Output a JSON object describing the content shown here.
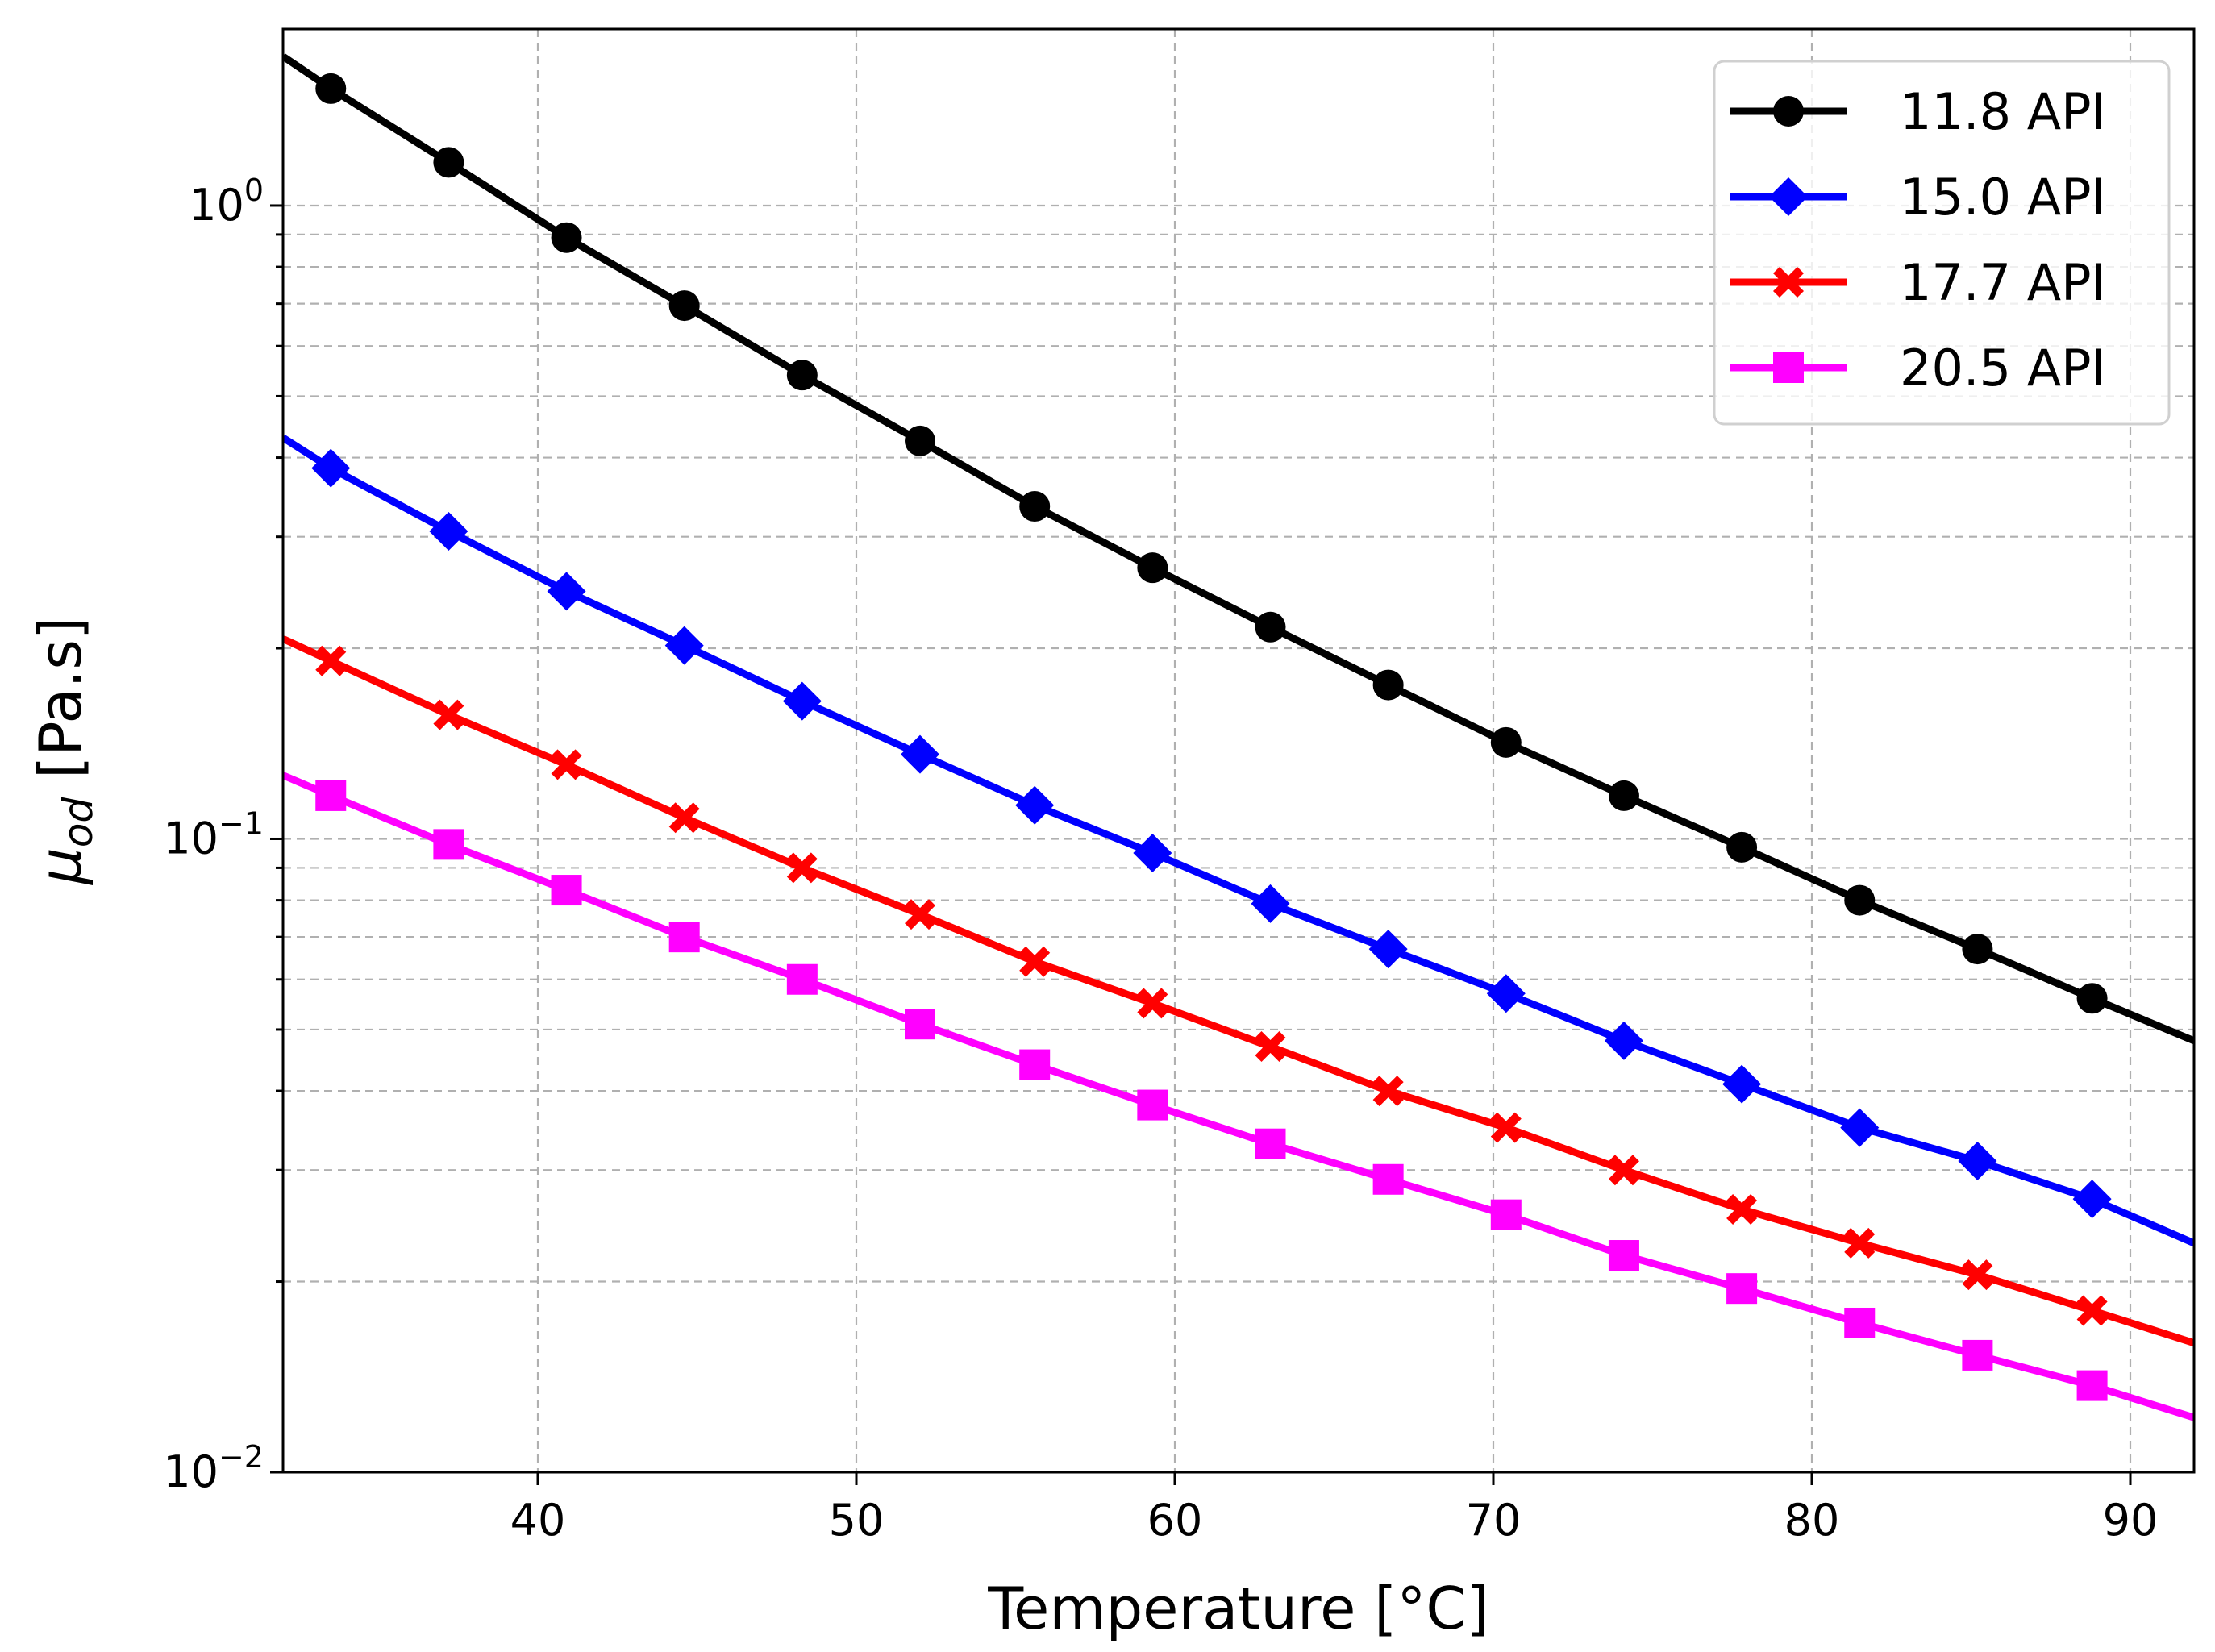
{
  "chart_data": {
    "type": "line",
    "xlabel": "Temperature [°C]",
    "ylabel_symbol": "μ",
    "ylabel_subscript": "od",
    "ylabel_unit": " [Pa.s]",
    "xlim": [
      32,
      92
    ],
    "ylim": [
      0.01,
      1.9
    ],
    "yscale": "log",
    "grid": true,
    "legend_position": "top-right",
    "x_ticks": [
      "40",
      "50",
      "60",
      "70",
      "80",
      "90"
    ],
    "y_ticks": [
      {
        "base": "10",
        "exp": "0"
      },
      {
        "base": "10",
        "exp": "−1"
      },
      {
        "base": "10",
        "exp": "−2"
      }
    ],
    "x": [
      33.5,
      37.2,
      40.9,
      44.6,
      48.3,
      52.0,
      55.6,
      59.3,
      63.0,
      66.7,
      70.4,
      74.1,
      77.8,
      81.5,
      85.2,
      88.8
    ],
    "series": [
      {
        "name": "11.8 API",
        "color": "#000000",
        "marker": "circle",
        "start": [
          32,
          1.72
        ],
        "end": [
          92,
          0.048
        ],
        "values": [
          1.53,
          1.17,
          0.89,
          0.695,
          0.54,
          0.425,
          0.335,
          0.268,
          0.216,
          0.175,
          0.142,
          0.117,
          0.097,
          0.08,
          0.067,
          0.056
        ]
      },
      {
        "name": "15.0 API",
        "color": "#0000ff",
        "marker": "diamond",
        "start": [
          32,
          0.43
        ],
        "end": [
          92,
          0.023
        ],
        "values": [
          0.385,
          0.306,
          0.246,
          0.202,
          0.165,
          0.136,
          0.113,
          0.095,
          0.079,
          0.067,
          0.057,
          0.048,
          0.041,
          0.035,
          0.031,
          0.027
        ]
      },
      {
        "name": "17.7 API",
        "color": "#ff0000",
        "marker": "x-filled",
        "start": [
          32,
          0.207
        ],
        "end": [
          92,
          0.016
        ],
        "values": [
          0.191,
          0.157,
          0.131,
          0.108,
          0.09,
          0.076,
          0.064,
          0.055,
          0.047,
          0.04,
          0.035,
          0.03,
          0.026,
          0.023,
          0.0205,
          0.018
        ]
      },
      {
        "name": "20.5 API",
        "color": "#ff00ff",
        "marker": "square",
        "start": [
          32,
          0.126
        ],
        "end": [
          92,
          0.0122
        ],
        "values": [
          0.117,
          0.098,
          0.083,
          0.07,
          0.06,
          0.051,
          0.044,
          0.038,
          0.033,
          0.029,
          0.0255,
          0.022,
          0.0195,
          0.0172,
          0.0153,
          0.0137
        ]
      }
    ]
  }
}
